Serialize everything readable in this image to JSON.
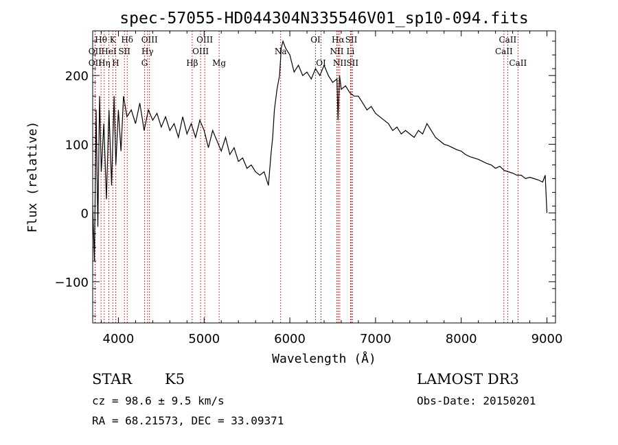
{
  "chart_data": {
    "type": "line",
    "title": "spec-57055-HD044304N335546V01_sp10-094.fits",
    "xlabel": "Wavelength (Å)",
    "ylabel": "Flux (relative)",
    "xlim": [
      3700,
      9100
    ],
    "ylim": [
      -160,
      265
    ],
    "xticks": [
      4000,
      5000,
      6000,
      7000,
      8000,
      9000
    ],
    "yticks": [
      -100,
      0,
      100,
      200
    ],
    "xtick_labels": [
      "4000",
      "5000",
      "6000",
      "7000",
      "8000",
      "9000"
    ],
    "ytick_labels": [
      "−100",
      "0",
      "100",
      "200"
    ],
    "series": [
      {
        "name": "flux",
        "x": [
          3700,
          3720,
          3740,
          3760,
          3780,
          3800,
          3830,
          3860,
          3890,
          3920,
          3950,
          3970,
          4000,
          4030,
          4060,
          4100,
          4150,
          4200,
          4250,
          4300,
          4350,
          4400,
          4450,
          4500,
          4550,
          4600,
          4650,
          4700,
          4750,
          4800,
          4850,
          4900,
          4950,
          5000,
          5050,
          5100,
          5150,
          5200,
          5250,
          5300,
          5350,
          5400,
          5450,
          5500,
          5550,
          5600,
          5650,
          5700,
          5750,
          5780,
          5800,
          5820,
          5850,
          5880,
          5900,
          5920,
          5950,
          6000,
          6050,
          6100,
          6150,
          6200,
          6250,
          6300,
          6350,
          6400,
          6450,
          6500,
          6550,
          6563,
          6580,
          6600,
          6650,
          6700,
          6750,
          6800,
          6850,
          6900,
          6950,
          7000,
          7050,
          7100,
          7150,
          7200,
          7250,
          7300,
          7350,
          7400,
          7450,
          7500,
          7550,
          7600,
          7650,
          7700,
          7750,
          7800,
          7850,
          7900,
          7950,
          8000,
          8050,
          8100,
          8150,
          8200,
          8250,
          8300,
          8350,
          8400,
          8450,
          8500,
          8550,
          8600,
          8650,
          8700,
          8750,
          8800,
          8850,
          8900,
          8950,
          8980,
          9000
        ],
        "y": [
          10,
          -70,
          150,
          -20,
          170,
          60,
          130,
          20,
          150,
          40,
          170,
          70,
          150,
          90,
          170,
          140,
          150,
          130,
          160,
          120,
          150,
          135,
          145,
          125,
          140,
          120,
          130,
          110,
          140,
          115,
          130,
          110,
          135,
          120,
          95,
          120,
          105,
          90,
          110,
          85,
          95,
          75,
          80,
          65,
          70,
          60,
          55,
          60,
          40,
          85,
          110,
          150,
          180,
          200,
          240,
          250,
          240,
          230,
          205,
          215,
          200,
          205,
          195,
          210,
          200,
          215,
          200,
          190,
          195,
          135,
          200,
          180,
          185,
          175,
          170,
          170,
          160,
          150,
          155,
          145,
          140,
          135,
          130,
          120,
          125,
          115,
          120,
          115,
          110,
          120,
          115,
          130,
          120,
          110,
          105,
          100,
          98,
          95,
          92,
          90,
          85,
          82,
          80,
          78,
          75,
          72,
          70,
          65,
          68,
          62,
          60,
          58,
          55,
          55,
          50,
          52,
          50,
          48,
          45,
          55,
          0
        ]
      }
    ],
    "spectral_lines": [
      {
        "label": "Hθ",
        "x": 3797,
        "row": 0
      },
      {
        "label": "K",
        "x": 3934,
        "row": 0
      },
      {
        "label": "Hδ",
        "x": 4102,
        "row": 0
      },
      {
        "label": "OIII",
        "x": 4363,
        "row": 0
      },
      {
        "label": "OIII",
        "x": 5007,
        "row": 0
      },
      {
        "label": "OI",
        "x": 6300,
        "row": 0
      },
      {
        "label": "Hα",
        "x": 6563,
        "row": 0
      },
      {
        "label": "SII",
        "x": 6717,
        "row": 0
      },
      {
        "label": "CaII",
        "x": 8542,
        "row": 0
      },
      {
        "label": "OII",
        "x": 3727,
        "row": 1
      },
      {
        "label": "HeI",
        "x": 3889,
        "row": 1
      },
      {
        "label": "SII",
        "x": 4070,
        "row": 1
      },
      {
        "label": "Hγ",
        "x": 4340,
        "row": 1
      },
      {
        "label": "OIII",
        "x": 4959,
        "row": 1
      },
      {
        "label": "Na",
        "x": 5893,
        "row": 1
      },
      {
        "label": "NII",
        "x": 6548,
        "row": 1
      },
      {
        "label": "Li",
        "x": 6708,
        "row": 1
      },
      {
        "label": "CaII",
        "x": 8498,
        "row": 1
      },
      {
        "label": "OII",
        "x": 3727,
        "row": 2
      },
      {
        "label": "Hη",
        "x": 3835,
        "row": 2
      },
      {
        "label": "H",
        "x": 3968,
        "row": 2
      },
      {
        "label": "G",
        "x": 4305,
        "row": 2
      },
      {
        "label": "Hβ",
        "x": 4861,
        "row": 2
      },
      {
        "label": "Mg",
        "x": 5175,
        "row": 2
      },
      {
        "label": "OI",
        "x": 6364,
        "row": 2
      },
      {
        "label": "NII",
        "x": 6583,
        "row": 2
      },
      {
        "label": "SII",
        "x": 6731,
        "row": 2
      },
      {
        "label": "CaII",
        "x": 8662,
        "row": 2
      }
    ],
    "line_color": "#000000",
    "marker_color": "#cc0000"
  },
  "info": {
    "class_label": "STAR",
    "subclass": "K5",
    "survey": "LAMOST DR3",
    "cz": "cz = 98.6 ± 9.5 km/s",
    "obs_date": "Obs-Date: 20150201",
    "radec": "RA =  68.21573, DEC =  33.09371"
  }
}
